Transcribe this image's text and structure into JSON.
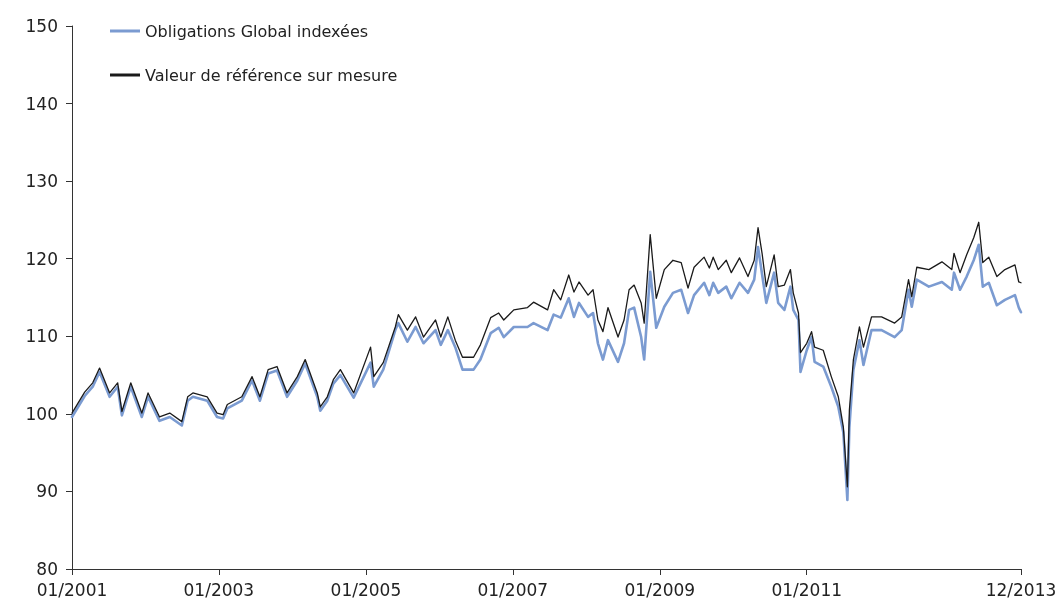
{
  "chart_data": {
    "type": "line",
    "legend": "top left",
    "grid": false,
    "marker": "none",
    "line_style": "solid",
    "xlim": [
      "2001-01",
      "2013-12"
    ],
    "xticks": [
      {
        "value": "2001-01",
        "label": "01/2001"
      },
      {
        "value": "2003-01",
        "label": "01/2003"
      },
      {
        "value": "2005-01",
        "label": "01/2005"
      },
      {
        "value": "2007-01",
        "label": "01/2007"
      },
      {
        "value": "2009-01",
        "label": "01/2009"
      },
      {
        "value": "2011-01",
        "label": "01/2011"
      },
      {
        "value": "2013-12",
        "label": "12/2013"
      }
    ],
    "ylim": [
      80,
      150
    ],
    "yticks": [
      80,
      90,
      100,
      110,
      120,
      130,
      140,
      150
    ],
    "x": [
      "2001-01-01",
      "2001-03-05",
      "2001-04-14",
      "2001-05-18",
      "2001-07-07",
      "2001-08-16",
      "2001-09-06",
      "2001-10-20",
      "2001-12-14",
      "2002-01-14",
      "2002-03-12",
      "2002-05-02",
      "2002-07-01",
      "2002-07-30",
      "2002-08-25",
      "2002-11-04",
      "2002-12-23",
      "2003-01-22",
      "2003-02-12",
      "2003-04-25",
      "2003-06-15",
      "2003-07-24",
      "2003-09-03",
      "2003-10-17",
      "2003-12-06",
      "2004-01-26",
      "2004-03-05",
      "2004-05-04",
      "2004-05-19",
      "2004-06-23",
      "2004-07-23",
      "2004-08-27",
      "2004-11-01",
      "2005-01-24",
      "2005-02-09",
      "2005-03-28",
      "2005-05-27",
      "2005-06-11",
      "2005-07-26",
      "2005-09-05",
      "2005-10-14",
      "2005-12-13",
      "2006-01-08",
      "2006-02-12",
      "2006-03-21",
      "2006-04-26",
      "2006-06-20",
      "2006-07-24",
      "2006-09-13",
      "2006-10-23",
      "2006-11-17",
      "2007-01-06",
      "2007-03-15",
      "2007-04-14",
      "2007-06-23",
      "2007-07-23",
      "2007-08-27",
      "2007-10-06",
      "2007-11-01",
      "2007-11-26",
      "2008-01-10",
      "2008-02-04",
      "2008-02-28",
      "2008-03-24",
      "2008-04-18",
      "2008-06-07",
      "2008-07-07",
      "2008-08-01",
      "2008-08-26",
      "2008-09-30",
      "2008-10-15",
      "2008-11-14",
      "2008-12-14",
      "2009-01-23",
      "2009-03-07",
      "2009-04-17",
      "2009-05-21",
      "2009-06-20",
      "2009-08-09",
      "2009-09-04",
      "2009-09-23",
      "2009-10-18",
      "2009-11-27",
      "2009-12-22",
      "2010-02-01",
      "2010-03-15",
      "2010-04-15",
      "2010-05-04",
      "2010-05-24",
      "2010-06-14",
      "2010-07-23",
      "2010-08-12",
      "2010-09-12",
      "2010-10-12",
      "2010-10-26",
      "2010-11-21",
      "2010-12-01",
      "2011-01-01",
      "2011-01-25",
      "2011-02-09",
      "2011-03-24",
      "2011-05-03",
      "2011-06-07",
      "2011-07-02",
      "2011-07-22",
      "2011-08-01",
      "2011-08-21",
      "2011-09-20",
      "2011-10-10",
      "2011-11-19",
      "2012-01-08",
      "2012-03-13",
      "2012-04-17",
      "2012-05-21",
      "2012-06-06",
      "2012-07-01",
      "2012-08-30",
      "2012-11-03",
      "2012-12-22",
      "2013-01-02",
      "2013-02-01",
      "2013-03-06",
      "2013-04-10",
      "2013-05-05",
      "2013-05-25",
      "2013-06-24",
      "2013-08-03",
      "2013-09-12",
      "2013-11-01",
      "2013-11-20",
      "2013-12-01"
    ],
    "series": [
      {
        "name": "Obligations Global indexées",
        "color": "#7b9bd1",
        "values": [
          99.6,
          102.3,
          103.5,
          105.4,
          102.2,
          103.5,
          99.8,
          103.5,
          99.6,
          102.2,
          99.1,
          99.6,
          98.5,
          101.7,
          102.2,
          101.7,
          99.6,
          99.4,
          100.7,
          101.7,
          104.3,
          101.7,
          105.2,
          105.6,
          102.2,
          104.3,
          106.5,
          102.2,
          100.4,
          101.7,
          103.9,
          105.0,
          102.1,
          106.6,
          103.5,
          105.7,
          110.8,
          111.7,
          109.3,
          111.2,
          109.1,
          110.8,
          108.9,
          110.8,
          108.6,
          105.7,
          105.7,
          107.0,
          110.4,
          111.1,
          109.9,
          111.2,
          111.2,
          111.7,
          110.8,
          112.8,
          112.4,
          114.9,
          112.5,
          114.3,
          112.5,
          113.0,
          109.1,
          107.0,
          109.5,
          106.7,
          109.1,
          113.4,
          113.7,
          109.9,
          107.0,
          118.3,
          111.1,
          113.8,
          115.6,
          116.0,
          113.0,
          115.3,
          116.9,
          115.3,
          116.9,
          115.6,
          116.4,
          114.9,
          116.9,
          115.6,
          117.3,
          121.5,
          118.0,
          114.3,
          118.2,
          114.3,
          113.4,
          116.4,
          113.4,
          112.1,
          105.4,
          108.2,
          109.9,
          106.7,
          106.1,
          103.5,
          100.9,
          97.6,
          88.9,
          98.3,
          105.7,
          109.5,
          106.3,
          110.8,
          110.8,
          109.9,
          110.8,
          116.0,
          113.8,
          117.3,
          116.4,
          117.0,
          116.0,
          118.2,
          116.0,
          117.7,
          119.8,
          121.8,
          116.4,
          116.9,
          114.0,
          114.7,
          115.3,
          113.7,
          113.1
        ]
      },
      {
        "name": "Valeur de référence sur mesure",
        "color": "#1a1a1a",
        "values": [
          100.1,
          102.8,
          104.0,
          105.9,
          102.7,
          104.0,
          100.3,
          104.0,
          100.1,
          102.7,
          99.6,
          100.1,
          99.0,
          102.2,
          102.7,
          102.2,
          100.1,
          99.9,
          101.2,
          102.2,
          104.8,
          102.2,
          105.7,
          106.1,
          102.7,
          104.8,
          107.0,
          102.7,
          100.9,
          102.2,
          104.4,
          105.7,
          102.7,
          108.6,
          104.8,
          106.6,
          111.2,
          112.8,
          110.8,
          112.5,
          109.9,
          112.1,
          109.9,
          112.5,
          109.5,
          107.3,
          107.3,
          108.9,
          112.4,
          113.0,
          112.1,
          113.4,
          113.7,
          114.4,
          113.4,
          116.0,
          114.7,
          117.9,
          115.7,
          117.0,
          115.3,
          116.0,
          112.1,
          110.6,
          113.7,
          109.9,
          112.1,
          116.0,
          116.6,
          114.3,
          111.7,
          123.1,
          114.9,
          118.6,
          119.8,
          119.5,
          116.2,
          118.9,
          120.2,
          118.8,
          120.2,
          118.6,
          119.8,
          118.2,
          120.1,
          117.7,
          119.8,
          124.0,
          120.7,
          116.4,
          120.5,
          116.4,
          116.6,
          118.6,
          115.6,
          113.0,
          107.9,
          109.1,
          110.6,
          108.6,
          108.2,
          104.8,
          102.2,
          98.3,
          90.6,
          100.5,
          107.0,
          111.2,
          108.6,
          112.5,
          112.5,
          111.7,
          112.5,
          117.3,
          115.1,
          118.9,
          118.6,
          119.6,
          118.6,
          120.7,
          118.2,
          120.5,
          122.7,
          124.7,
          119.5,
          120.2,
          117.7,
          118.6,
          119.2,
          117.0,
          116.9
        ]
      }
    ]
  }
}
